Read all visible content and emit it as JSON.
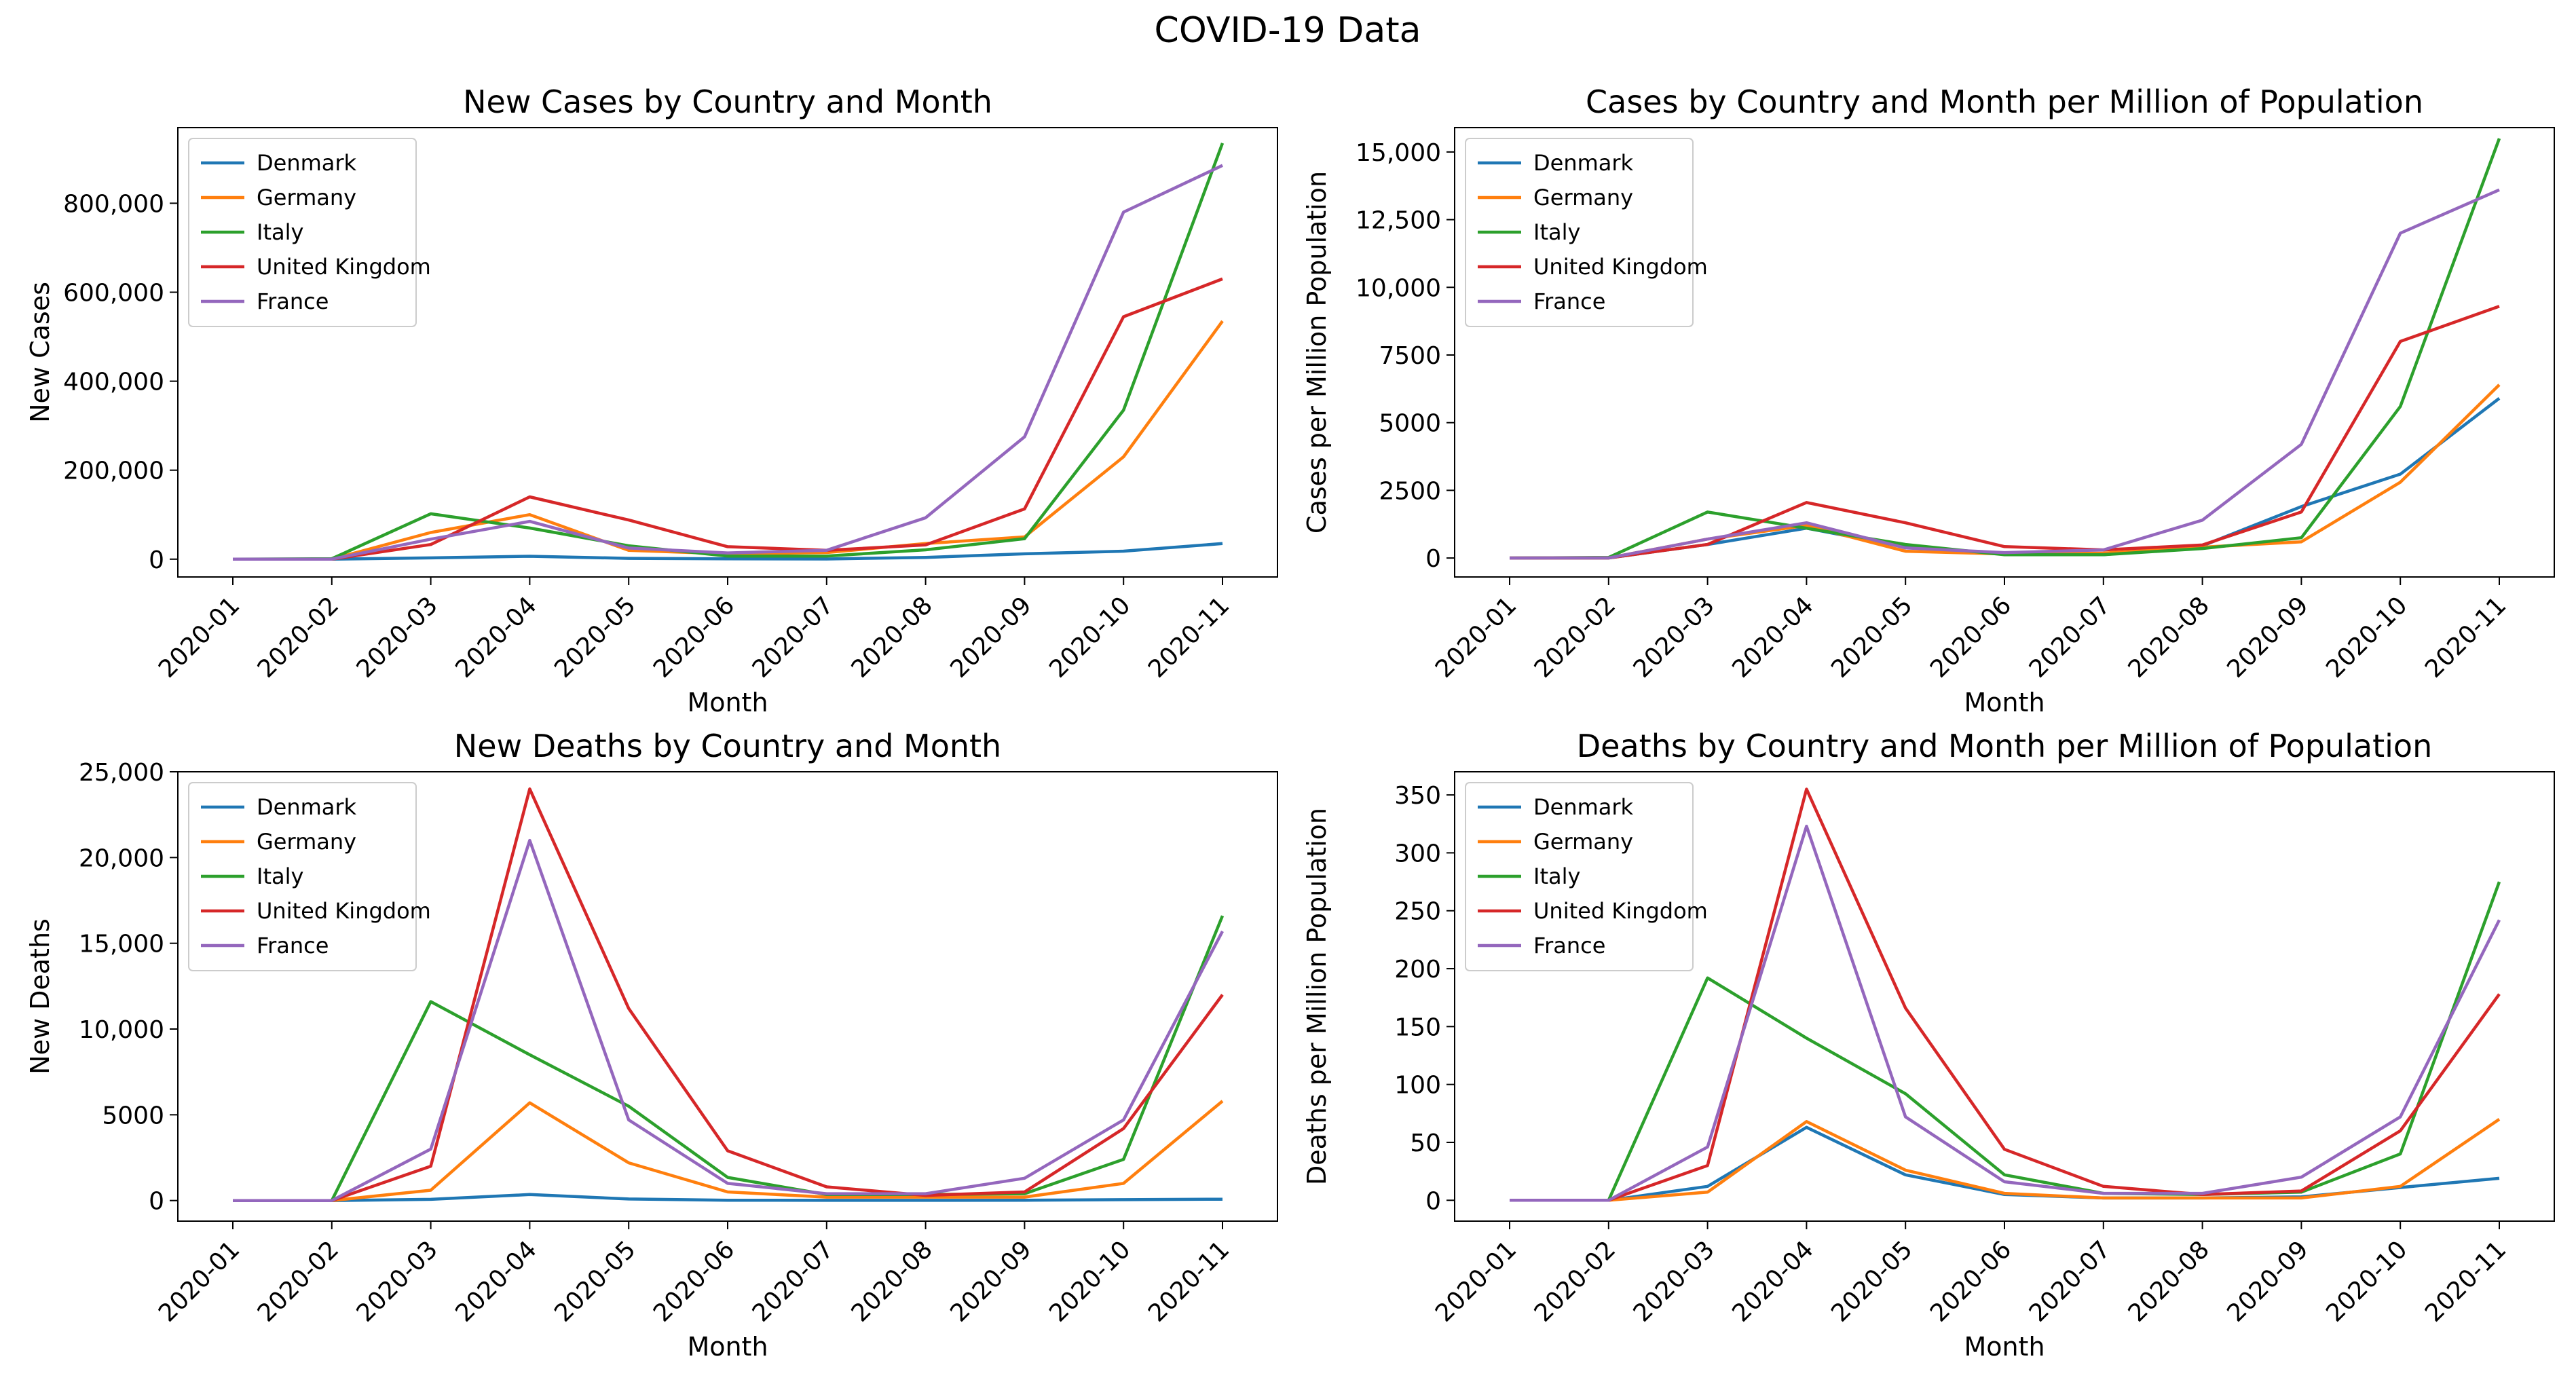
{
  "figure_title": "COVID-19 Data",
  "series_colors": {
    "Denmark": "#1f77b4",
    "Germany": "#ff7f0e",
    "Italy": "#2ca02c",
    "United Kingdom": "#d62728",
    "France": "#9467bd"
  },
  "chart_data": [
    {
      "type": "line",
      "title": "New Cases by Country and Month",
      "xlabel": "Month",
      "ylabel": "New Cases",
      "legend": "top-left",
      "grid": false,
      "x": [
        "2020-01",
        "2020-02",
        "2020-03",
        "2020-04",
        "2020-05",
        "2020-06",
        "2020-07",
        "2020-08",
        "2020-09",
        "2020-10",
        "2020-11"
      ],
      "ylim": [
        -40000,
        970000
      ],
      "yticks": [
        0,
        200000,
        400000,
        600000,
        800000
      ],
      "ytick_labels": [
        "0",
        "200,000",
        "400,000",
        "600,000",
        "800,000"
      ],
      "series": [
        {
          "name": "Denmark",
          "values": [
            0,
            4,
            2800,
            6500,
            1800,
            800,
            400,
            4000,
            12000,
            18000,
            35000
          ]
        },
        {
          "name": "Germany",
          "values": [
            5,
            60,
            60000,
            100000,
            20000,
            12000,
            15000,
            35000,
            50000,
            230000,
            535000
          ]
        },
        {
          "name": "Italy",
          "values": [
            3,
            1100,
            102000,
            70000,
            30000,
            7000,
            7000,
            21000,
            46000,
            335000,
            935000
          ]
        },
        {
          "name": "United Kingdom",
          "values": [
            2,
            30,
            33000,
            140000,
            88000,
            28000,
            20000,
            32000,
            113000,
            545000,
            630000
          ]
        },
        {
          "name": "France",
          "values": [
            5,
            50,
            45000,
            85000,
            25000,
            14000,
            20000,
            93000,
            275000,
            780000,
            885000
          ]
        }
      ]
    },
    {
      "type": "line",
      "title": "Cases by Country and Month per Million of Population",
      "xlabel": "Month",
      "ylabel": "Cases per Million Population",
      "legend": "top-left",
      "grid": false,
      "x": [
        "2020-01",
        "2020-02",
        "2020-03",
        "2020-04",
        "2020-05",
        "2020-06",
        "2020-07",
        "2020-08",
        "2020-09",
        "2020-10",
        "2020-11"
      ],
      "ylim": [
        -700,
        15900
      ],
      "yticks": [
        0,
        2500,
        5000,
        7500,
        10000,
        12500,
        15000
      ],
      "ytick_labels": [
        "0",
        "2500",
        "5000",
        "7500",
        "10,000",
        "12,500",
        "15,000"
      ],
      "series": [
        {
          "name": "Denmark",
          "values": [
            0,
            1,
            500,
            1100,
            400,
            150,
            120,
            450,
            1900,
            3100,
            5900
          ]
        },
        {
          "name": "Germany",
          "values": [
            0,
            1,
            700,
            1200,
            250,
            150,
            180,
            400,
            600,
            2800,
            6400
          ]
        },
        {
          "name": "Italy",
          "values": [
            0,
            20,
            1700,
            1100,
            500,
            120,
            120,
            350,
            750,
            5600,
            15500
          ]
        },
        {
          "name": "United Kingdom",
          "values": [
            0,
            1,
            500,
            2050,
            1300,
            420,
            300,
            480,
            1700,
            8000,
            9300
          ]
        },
        {
          "name": "France",
          "values": [
            0,
            1,
            700,
            1300,
            370,
            200,
            300,
            1400,
            4200,
            12000,
            13600
          ]
        }
      ]
    },
    {
      "type": "line",
      "title": "New Deaths by Country and Month",
      "xlabel": "Month",
      "ylabel": "New Deaths",
      "legend": "top-left",
      "grid": false,
      "x": [
        "2020-01",
        "2020-02",
        "2020-03",
        "2020-04",
        "2020-05",
        "2020-06",
        "2020-07",
        "2020-08",
        "2020-09",
        "2020-10",
        "2020-11"
      ],
      "ylim": [
        -1200,
        25000
      ],
      "yticks": [
        0,
        5000,
        10000,
        15000,
        20000,
        25000
      ],
      "ytick_labels": [
        "0",
        "5000",
        "10,000",
        "15,000",
        "20,000",
        "25,000"
      ],
      "series": [
        {
          "name": "Denmark",
          "values": [
            0,
            0,
            70,
            350,
            90,
            20,
            10,
            10,
            20,
            50,
            80
          ]
        },
        {
          "name": "Germany",
          "values": [
            0,
            0,
            600,
            5700,
            2200,
            500,
            200,
            200,
            200,
            1000,
            5800
          ]
        },
        {
          "name": "Italy",
          "values": [
            0,
            0,
            11600,
            8500,
            5500,
            1350,
            350,
            350,
            400,
            2400,
            16600
          ]
        },
        {
          "name": "United Kingdom",
          "values": [
            0,
            0,
            2000,
            24000,
            11200,
            2900,
            800,
            300,
            500,
            4200,
            12000
          ]
        },
        {
          "name": "France",
          "values": [
            0,
            0,
            3000,
            21000,
            4700,
            1000,
            400,
            400,
            1300,
            4700,
            15700
          ]
        }
      ]
    },
    {
      "type": "line",
      "title": "Deaths by Country and Month per Million of Population",
      "xlabel": "Month",
      "ylabel": "Deaths per Million Population",
      "legend": "top-left",
      "grid": false,
      "x": [
        "2020-01",
        "2020-02",
        "2020-03",
        "2020-04",
        "2020-05",
        "2020-06",
        "2020-07",
        "2020-08",
        "2020-09",
        "2020-10",
        "2020-11"
      ],
      "ylim": [
        -18,
        370
      ],
      "yticks": [
        0,
        50,
        100,
        150,
        200,
        250,
        300,
        350
      ],
      "ytick_labels": [
        "0",
        "50",
        "100",
        "150",
        "200",
        "250",
        "300",
        "350"
      ],
      "series": [
        {
          "name": "Denmark",
          "values": [
            0,
            0,
            12,
            63,
            22,
            5,
            2,
            2,
            3,
            11,
            19
          ]
        },
        {
          "name": "Germany",
          "values": [
            0,
            0,
            7,
            68,
            26,
            6,
            2,
            2,
            2,
            12,
            70
          ]
        },
        {
          "name": "Italy",
          "values": [
            0,
            0,
            192,
            140,
            92,
            22,
            6,
            5,
            7,
            40,
            275
          ]
        },
        {
          "name": "United Kingdom",
          "values": [
            0,
            0,
            30,
            355,
            166,
            44,
            12,
            5,
            8,
            60,
            178
          ]
        },
        {
          "name": "France",
          "values": [
            0,
            0,
            46,
            323,
            72,
            16,
            6,
            6,
            20,
            72,
            242
          ]
        }
      ]
    }
  ]
}
